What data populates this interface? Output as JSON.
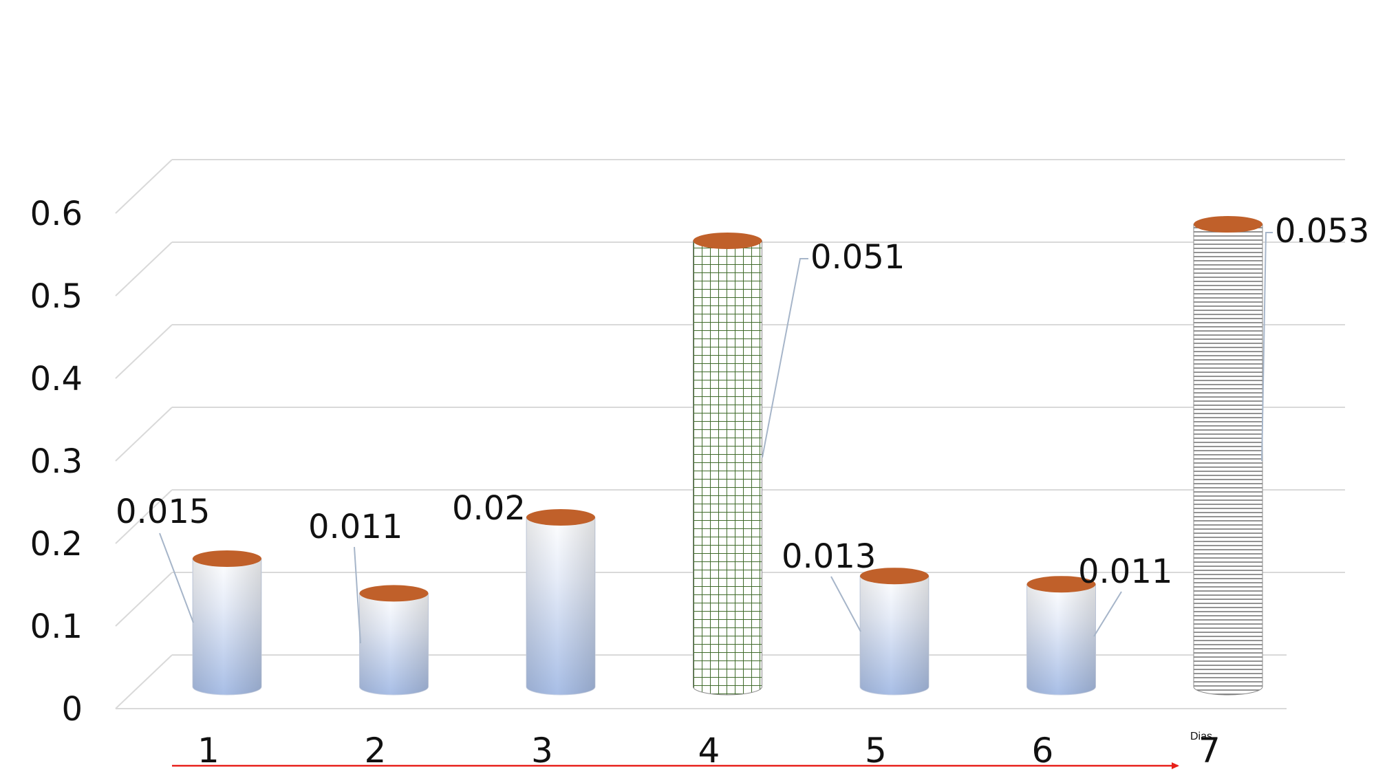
{
  "chart_data": {
    "type": "bar",
    "style": "3d-cylinder",
    "categories": [
      "1",
      "2",
      "3",
      "4",
      "5",
      "6",
      "7"
    ],
    "values": [
      0.015,
      0.011,
      0.02,
      0.051,
      0.013,
      0.011,
      0.053
    ],
    "bar_heights": [
      0.155,
      0.113,
      0.205,
      0.54,
      0.134,
      0.124,
      0.56
    ],
    "data_labels": [
      "0.015",
      "0.011",
      "0.02",
      "0.051",
      "0.013",
      "0.011",
      "0.053"
    ],
    "ylim": [
      0,
      0.6
    ],
    "yticks": [
      "0",
      "0.1",
      "0.2",
      "0.3",
      "0.4",
      "0.5",
      "0.6"
    ],
    "xlabel": "Dias",
    "ylabel": "",
    "title": "",
    "grid": true,
    "legend": "none",
    "fills": [
      "gradient",
      "gradient",
      "gradient",
      "green-grid",
      "gradient",
      "gradient",
      "gray-stripes"
    ],
    "colors": {
      "cylinder_top": "#C0602A",
      "gradient_top": "#ffffff",
      "gradient_bottom": "#A8BEE6",
      "grid_line": "#D9D9D9",
      "pattern_green": "#3F6A2A",
      "pattern_gray": "#777777",
      "arrow": "#E8201A",
      "leader_line": "#A6B5C9"
    }
  }
}
